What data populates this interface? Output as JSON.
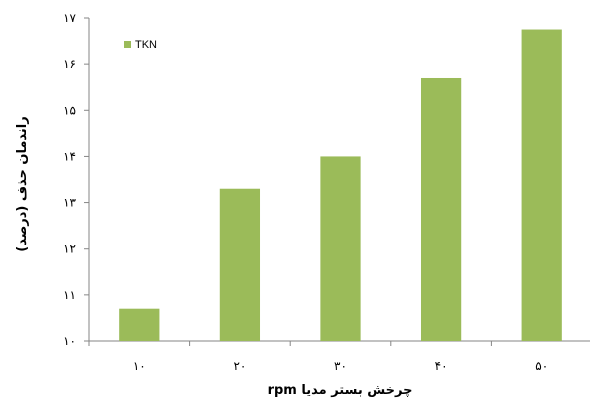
{
  "chart_data": {
    "type": "bar",
    "categories": [
      "۱۰",
      "۲۰",
      "۳۰",
      "۴۰",
      "۵۰"
    ],
    "series": [
      {
        "name": "TKN",
        "values": [
          10.7,
          13.3,
          14.0,
          15.7,
          16.75
        ],
        "color": "#9BBB59"
      }
    ],
    "ylim": [
      10,
      17
    ],
    "y_ticks": [
      10,
      11,
      12,
      13,
      14,
      15,
      16,
      17
    ],
    "y_tick_labels": [
      "۱۰",
      "۱۱",
      "۱۲",
      "۱۳",
      "۱۴",
      "۱۵",
      "۱۶",
      "۱۷"
    ],
    "xlabel": "چرخش بستر مدیا rpm",
    "ylabel": "راندمان حذف (درصد)",
    "grid": false,
    "legend_position": "top-left"
  }
}
